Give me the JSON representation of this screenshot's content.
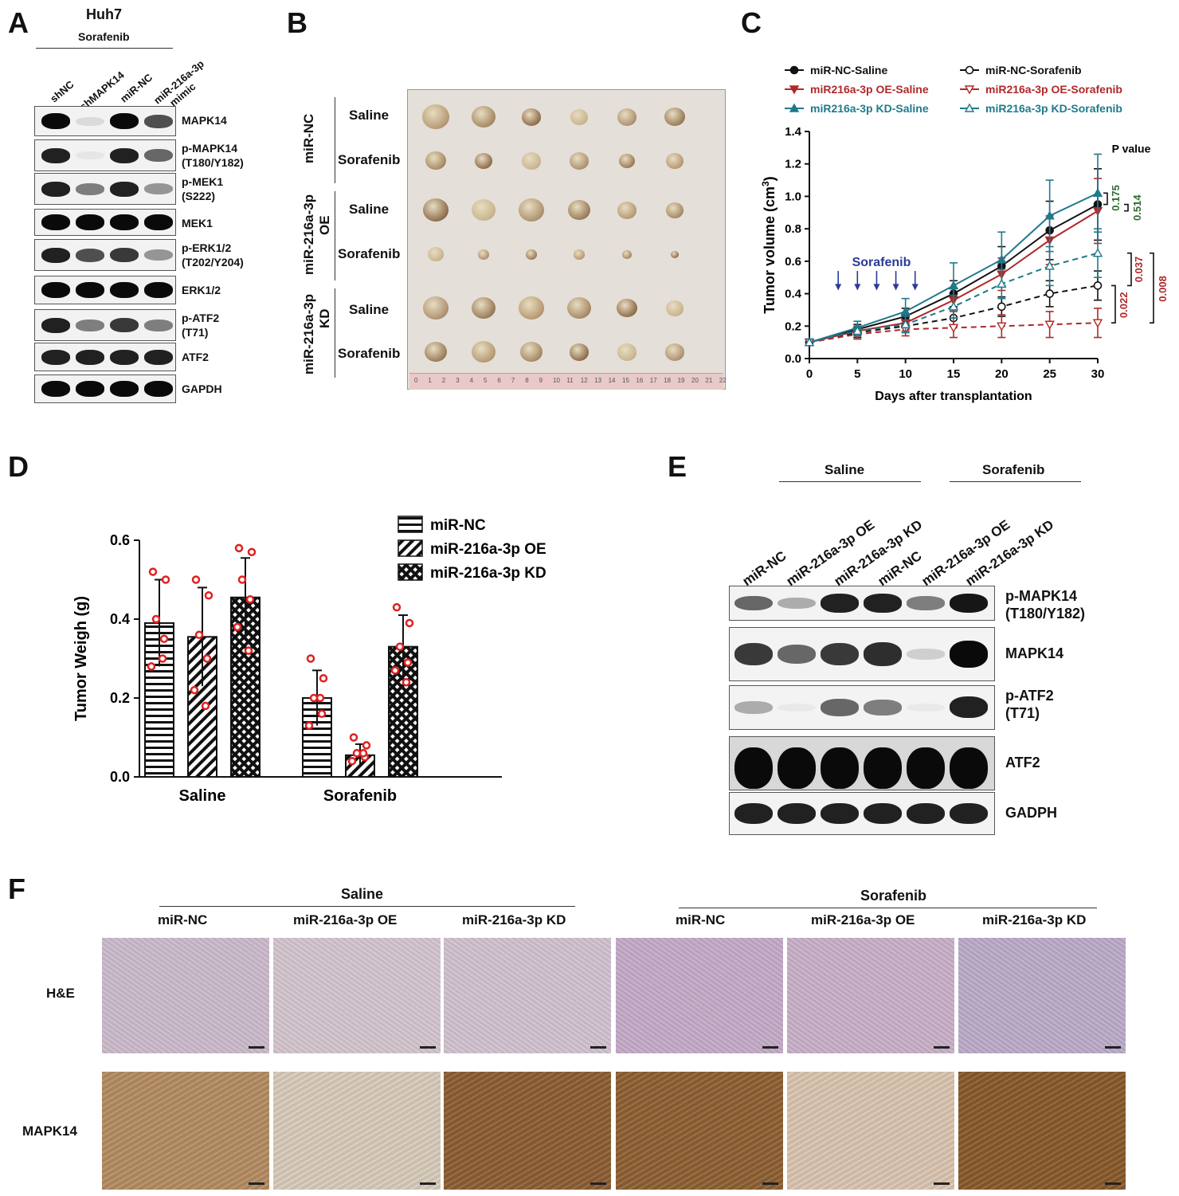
{
  "panels": {
    "A": "A",
    "B": "B",
    "C": "C",
    "D": "D",
    "E": "E",
    "F": "F"
  },
  "panelA": {
    "cell_line": "Huh7",
    "treatment": "Sorafenib",
    "lanes": [
      "shNC",
      "shMAPK14",
      "miR-NC",
      "miR-216a-3p",
      "mimic"
    ],
    "rows": [
      {
        "line1": "MAPK14",
        "line2": "",
        "levels": [
          1.0,
          0.1,
          1.0,
          0.7
        ]
      },
      {
        "line1": "p-MAPK14",
        "line2": "(T180/Y182)",
        "levels": [
          0.9,
          0.05,
          0.9,
          0.6
        ]
      },
      {
        "line1": "p-MEK1",
        "line2": "(S222)",
        "levels": [
          0.9,
          0.5,
          0.9,
          0.4
        ]
      },
      {
        "line1": "MEK1",
        "line2": "",
        "levels": [
          1.0,
          1.0,
          1.0,
          1.0
        ]
      },
      {
        "line1": "p-ERK1/2",
        "line2": "(T202/Y204)",
        "levels": [
          0.9,
          0.7,
          0.8,
          0.4
        ]
      },
      {
        "line1": "ERK1/2",
        "line2": "",
        "levels": [
          1.0,
          1.0,
          1.0,
          1.0
        ]
      },
      {
        "line1": "p-ATF2",
        "line2": "(T71)",
        "levels": [
          0.9,
          0.5,
          0.8,
          0.5
        ]
      },
      {
        "line1": "ATF2",
        "line2": "",
        "levels": [
          0.9,
          0.9,
          0.9,
          0.9
        ]
      },
      {
        "line1": "GAPDH",
        "line2": "",
        "levels": [
          1.0,
          1.0,
          1.0,
          1.0
        ]
      }
    ]
  },
  "panelB": {
    "groups": [
      {
        "line1": "miR-NC",
        "line2": ""
      },
      {
        "line1": "miR-216a-3p",
        "line2": "OE"
      },
      {
        "line1": "miR-216a-3p",
        "line2": "KD"
      }
    ],
    "rows": [
      "Saline",
      "Sorafenib",
      "Saline",
      "Sorafenib",
      "Saline",
      "Sorafenib"
    ],
    "ruler_ticks": [
      "0",
      "1",
      "2",
      "3",
      "4",
      "5",
      "6",
      "7",
      "8",
      "9",
      "10",
      "11",
      "12",
      "13",
      "14",
      "15",
      "16",
      "17",
      "18",
      "19",
      "20",
      "21",
      "22"
    ]
  },
  "chart_data": [
    {
      "type": "line",
      "ylabel_main": "Tumor volume (cm",
      "ylabel_sup": "3",
      "ylabel_end": ")",
      "xlabel": "Days after transplantation",
      "x": [
        0,
        5,
        10,
        15,
        20,
        25,
        30
      ],
      "xticks": [
        "0",
        "5",
        "10",
        "15",
        "20",
        "25",
        "30"
      ],
      "yticks": [
        "0.0",
        "0.2",
        "0.4",
        "0.6",
        "0.8",
        "1.0",
        "1.2",
        "1.4"
      ],
      "ylim": [
        0,
        1.4
      ],
      "xlim": [
        0,
        30
      ],
      "annotation": "Sorafenib",
      "arrow_days": [
        3,
        5,
        7,
        9,
        11
      ],
      "pvalue_title": "P value",
      "pvalues": [
        {
          "text": "0.175",
          "color": "#2e6b2e"
        },
        {
          "text": "0.514",
          "color": "#2e6b2e"
        },
        {
          "text": "0.037",
          "color": "#b0282a"
        },
        {
          "text": "0.022",
          "color": "#b0282a"
        },
        {
          "text": "0.008",
          "color": "#b0282a"
        }
      ],
      "series": [
        {
          "name": "miR-NC-Saline",
          "color": "#111111",
          "marker": "circle-filled",
          "dashed": false,
          "values": [
            0.1,
            0.18,
            0.26,
            0.4,
            0.57,
            0.79,
            0.95
          ],
          "err": [
            0.02,
            0.03,
            0.05,
            0.08,
            0.12,
            0.18,
            0.22
          ]
        },
        {
          "name": "miR-NC-Sorafenib",
          "color": "#111111",
          "marker": "circle-open",
          "dashed": true,
          "values": [
            0.1,
            0.16,
            0.2,
            0.25,
            0.32,
            0.4,
            0.45
          ],
          "err": [
            0.02,
            0.03,
            0.04,
            0.05,
            0.06,
            0.08,
            0.09
          ]
        },
        {
          "name": "miR216a-3p OE-Saline",
          "color": "#b0282a",
          "marker": "triangle-down-filled",
          "dashed": false,
          "values": [
            0.1,
            0.17,
            0.22,
            0.36,
            0.52,
            0.73,
            0.91
          ],
          "err": [
            0.02,
            0.03,
            0.05,
            0.07,
            0.1,
            0.15,
            0.2
          ]
        },
        {
          "name": "miR216a-3p OE-Sorafenib",
          "color": "#b0282a",
          "marker": "triangle-down-open",
          "dashed": true,
          "values": [
            0.1,
            0.15,
            0.18,
            0.19,
            0.2,
            0.21,
            0.22
          ],
          "err": [
            0.02,
            0.03,
            0.04,
            0.06,
            0.07,
            0.08,
            0.09
          ]
        },
        {
          "name": "miR216a-3p KD-Saline",
          "color": "#1f7a8c",
          "marker": "triangle-up-filled",
          "dashed": false,
          "values": [
            0.1,
            0.19,
            0.29,
            0.45,
            0.61,
            0.88,
            1.02
          ],
          "err": [
            0.02,
            0.04,
            0.08,
            0.14,
            0.17,
            0.22,
            0.24
          ]
        },
        {
          "name": "miR216a-3p KD-Sorafenib",
          "color": "#1f7a8c",
          "marker": "triangle-up-open",
          "dashed": true,
          "values": [
            0.1,
            0.17,
            0.21,
            0.32,
            0.46,
            0.57,
            0.65
          ],
          "err": [
            0.02,
            0.03,
            0.05,
            0.07,
            0.09,
            0.12,
            0.15
          ]
        }
      ]
    },
    {
      "type": "bar",
      "ylabel": "Tumor Weigh  (g)",
      "categories": [
        "Saline",
        "Sorafenib"
      ],
      "yticks": [
        "0.0",
        "0.2",
        "0.4",
        "0.6"
      ],
      "ylim": [
        0,
        0.6
      ],
      "series": [
        {
          "name": "miR-NC",
          "pattern": "hlines",
          "values": [
            0.39,
            0.2
          ],
          "err": [
            0.11,
            0.07
          ],
          "points": [
            [
              0.52,
              0.5,
              0.4,
              0.35,
              0.28,
              0.3
            ],
            [
              0.3,
              0.25,
              0.2,
              0.16,
              0.13,
              0.2
            ]
          ]
        },
        {
          "name": "miR-216a-3p OE",
          "pattern": "diag",
          "values": [
            0.355,
            0.055
          ],
          "err": [
            0.125,
            0.028
          ],
          "points": [
            [
              0.5,
              0.46,
              0.36,
              0.3,
              0.22,
              0.18
            ],
            [
              0.1,
              0.08,
              0.06,
              0.05,
              0.04,
              0.06
            ]
          ]
        },
        {
          "name": "miR-216a-3p KD",
          "pattern": "cross",
          "values": [
            0.455,
            0.33
          ],
          "err": [
            0.1,
            0.08
          ],
          "points": [
            [
              0.58,
              0.57,
              0.5,
              0.45,
              0.38,
              0.32
            ],
            [
              0.43,
              0.39,
              0.33,
              0.29,
              0.27,
              0.24
            ]
          ]
        }
      ]
    }
  ],
  "panelE": {
    "saline": "Saline",
    "sorafenib": "Sorafenib",
    "lanes": [
      "miR-NC",
      "miR-216a-3p OE",
      "miR-216a-3p KD",
      "miR-NC",
      "miR-216a-3p OE",
      "miR-216a-3p KD"
    ],
    "rows": [
      {
        "line1": "p-MAPK14",
        "line2": "(T180/Y182)",
        "levels": [
          0.6,
          0.3,
          0.9,
          0.9,
          0.5,
          0.95
        ]
      },
      {
        "line1": "MAPK14",
        "line2": "",
        "levels": [
          0.8,
          0.6,
          0.8,
          0.85,
          0.15,
          1.0
        ]
      },
      {
        "line1": "p-ATF2",
        "line2": "(T71)",
        "levels": [
          0.3,
          0.0,
          0.6,
          0.5,
          0.0,
          0.9
        ]
      },
      {
        "line1": "ATF2",
        "line2": "",
        "levels": [
          1.0,
          1.0,
          1.0,
          1.0,
          1.0,
          1.0
        ]
      },
      {
        "line1": "GADPH",
        "line2": "",
        "levels": [
          0.9,
          0.9,
          0.9,
          0.9,
          0.9,
          0.9
        ]
      }
    ]
  },
  "panelF": {
    "saline": "Saline",
    "sorafenib": "Sorafenib",
    "columns": [
      "miR-NC",
      "miR-216a-3p OE",
      "miR-216a-3p KD",
      "miR-NC",
      "miR-216a-3p OE",
      "miR-216a-3p KD"
    ],
    "row_labels": [
      "H&E",
      "MAPK14"
    ],
    "he_colors": [
      "#c9b8c9",
      "#d2c3cc",
      "#cfc0cd",
      "#c3a9c6",
      "#c7aec6",
      "#b9a9c8"
    ],
    "ihc_colors": [
      "#b58d62",
      "#d9ccbb",
      "#8e5f33",
      "#8f6133",
      "#dbc6b0",
      "#8a5a2c"
    ]
  }
}
